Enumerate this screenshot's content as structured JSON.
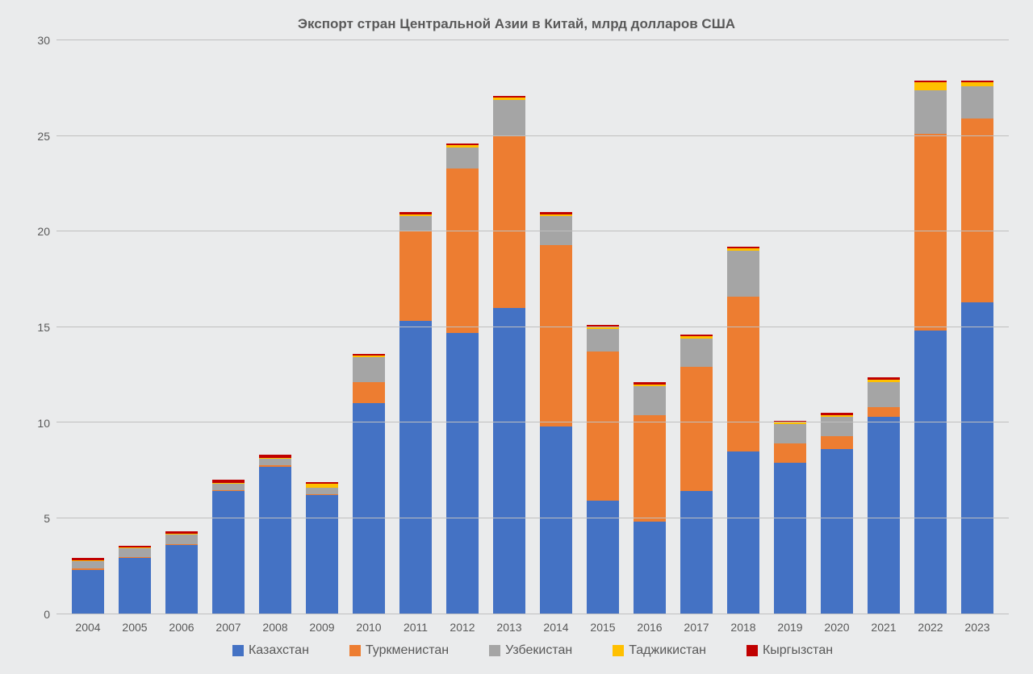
{
  "chart": {
    "type": "stacked-bar",
    "title": "Экспорт стран Центральной Азии в Китай, млрд долларов США",
    "title_fontsize": 17,
    "title_color": "#595959",
    "background_color": "#eaebec",
    "grid_color": "#bfbfbf",
    "label_color": "#595959",
    "label_fontsize": 14,
    "bar_width": 0.7,
    "ylim": [
      0,
      30
    ],
    "ytick_step": 5,
    "yticks": [
      0,
      5,
      10,
      15,
      20,
      25,
      30
    ],
    "categories": [
      "2004",
      "2005",
      "2006",
      "2007",
      "2008",
      "2009",
      "2010",
      "2011",
      "2012",
      "2013",
      "2014",
      "2015",
      "2016",
      "2017",
      "2018",
      "2019",
      "2020",
      "2021",
      "2022",
      "2023"
    ],
    "series": [
      {
        "name": "Казахстан",
        "color": "#4472c4"
      },
      {
        "name": "Туркменистан",
        "color": "#ed7d31"
      },
      {
        "name": "Узбекистан",
        "color": "#a5a5a5"
      },
      {
        "name": "Таджикистан",
        "color": "#ffc000"
      },
      {
        "name": "Кыргызстан",
        "color": "#c00000"
      }
    ],
    "data": {
      "2004": {
        "Казахстан": 2.3,
        "Туркменистан": 0.05,
        "Узбекистан": 0.4,
        "Таджикистан": 0.05,
        "Кыргызстан": 0.1
      },
      "2005": {
        "Казахстан": 2.9,
        "Туркменистан": 0.05,
        "Узбекистан": 0.45,
        "Таджикистан": 0.05,
        "Кыргызстан": 0.1
      },
      "2006": {
        "Казахстан": 3.6,
        "Туркменистан": 0.05,
        "Узбекистан": 0.5,
        "Таджикистан": 0.05,
        "Кыргызстан": 0.1
      },
      "2007": {
        "Казахстан": 6.4,
        "Туркменистан": 0.05,
        "Узбекистан": 0.35,
        "Таджикистан": 0.05,
        "Кыргызстан": 0.15
      },
      "2008": {
        "Казахстан": 7.7,
        "Туркменистан": 0.05,
        "Узбекистан": 0.35,
        "Таджикистан": 0.05,
        "Кыргызстан": 0.15
      },
      "2009": {
        "Казахстан": 6.2,
        "Туркменистан": 0.05,
        "Узбекистан": 0.35,
        "Таджикистан": 0.2,
        "Кыргызстан": 0.1
      },
      "2010": {
        "Казахстан": 11.0,
        "Туркменистан": 1.1,
        "Узбекистан": 1.3,
        "Таджикистан": 0.1,
        "Кыргызстан": 0.1
      },
      "2011": {
        "Казахстан": 15.3,
        "Туркменистан": 4.7,
        "Узбекистан": 0.8,
        "Таджикистан": 0.1,
        "Кыргызстан": 0.1
      },
      "2012": {
        "Казахстан": 14.7,
        "Туркменистан": 8.6,
        "Узбекистан": 1.1,
        "Таджикистан": 0.1,
        "Кыргызстан": 0.1
      },
      "2013": {
        "Казахстан": 16.0,
        "Туркменистан": 9.0,
        "Узбекистан": 1.9,
        "Таджикистан": 0.1,
        "Кыргызстан": 0.1
      },
      "2014": {
        "Казахстан": 9.8,
        "Туркменистан": 9.5,
        "Узбекистан": 1.5,
        "Таджикистан": 0.1,
        "Кыргызстан": 0.1
      },
      "2015": {
        "Казахстан": 5.9,
        "Туркменистан": 7.8,
        "Узбекистан": 1.2,
        "Таджикистан": 0.1,
        "Кыргызстан": 0.1
      },
      "2016": {
        "Казахстан": 4.8,
        "Туркменистан": 5.6,
        "Узбекистан": 1.5,
        "Таджикистан": 0.1,
        "Кыргызстан": 0.1
      },
      "2017": {
        "Казахстан": 6.4,
        "Туркменистан": 6.5,
        "Узбекистан": 1.5,
        "Таджикистан": 0.1,
        "Кыргызстан": 0.1
      },
      "2018": {
        "Казахстан": 8.5,
        "Туркменистан": 8.1,
        "Узбекистан": 2.4,
        "Таджикистан": 0.1,
        "Кыргызстан": 0.1
      },
      "2019": {
        "Казахстан": 7.9,
        "Туркменистан": 1.0,
        "Узбекистан": 1.0,
        "Таджикистан": 0.1,
        "Кыргызстан": 0.1
      },
      "2020": {
        "Казахстан": 8.6,
        "Туркменистан": 0.7,
        "Узбекистан": 1.0,
        "Таджикистан": 0.1,
        "Кыргызстан": 0.1
      },
      "2021": {
        "Казахстан": 10.3,
        "Туркменистан": 0.5,
        "Узбекистан": 1.3,
        "Таджикистан": 0.15,
        "Кыргызстан": 0.1
      },
      "2022": {
        "Казахстан": 14.8,
        "Туркменистан": 10.3,
        "Узбекистан": 2.3,
        "Таджикистан": 0.4,
        "Кыргызстан": 0.1
      },
      "2023": {
        "Казахстан": 16.3,
        "Туркменистан": 9.6,
        "Узбекистан": 1.7,
        "Таджикистан": 0.2,
        "Кыргызстан": 0.1
      }
    }
  }
}
